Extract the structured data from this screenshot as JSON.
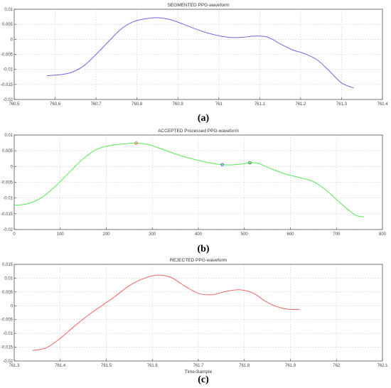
{
  "chart_data": [
    {
      "type": "line",
      "title": "SEGMENTED PPG-waveform",
      "panel_label": "(a)",
      "xlabel": "",
      "ylabel": "",
      "xlim": [
        760.5,
        761.4
      ],
      "ylim": [
        -0.02,
        0.01
      ],
      "xticks": [
        760.5,
        760.6,
        760.7,
        760.8,
        760.9,
        761,
        761.1,
        761.2,
        761.3,
        761.4
      ],
      "yticks": [
        -0.02,
        -0.015,
        -0.01,
        -0.005,
        0,
        0.005,
        0.01
      ],
      "xtick_labels": [
        "760.5",
        "760.6",
        "760.7",
        "760.8",
        "760.9",
        "761",
        "761.1",
        "761.2",
        "761.3",
        "761.4"
      ],
      "ytick_labels": [
        "-0.02",
        "-0.015",
        "-0.01",
        "-0.005",
        "0",
        "0.005",
        "0.01"
      ],
      "grid": true,
      "series": [
        {
          "color": "#6a6ae8",
          "x": [
            760.58,
            760.61,
            760.64,
            760.67,
            760.7,
            760.73,
            760.76,
            760.79,
            760.82,
            760.85,
            760.88,
            760.91,
            760.94,
            760.97,
            761.0,
            761.03,
            761.06,
            761.09,
            761.12,
            761.15,
            761.18,
            761.21,
            761.24,
            761.27,
            761.3,
            761.33
          ],
          "y": [
            -0.0121,
            -0.0118,
            -0.011,
            -0.0088,
            -0.005,
            -0.0008,
            0.0033,
            0.0058,
            0.0068,
            0.0072,
            0.0066,
            0.0052,
            0.0036,
            0.0022,
            0.0012,
            0.0006,
            0.0007,
            0.0011,
            0.0007,
            -0.0015,
            -0.0035,
            -0.0048,
            -0.0068,
            -0.0105,
            -0.0145,
            -0.0162
          ]
        }
      ]
    },
    {
      "type": "line",
      "title": "ACCEPTED Processed PPG-waveform",
      "panel_label": "(b)",
      "xlabel": "",
      "ylabel": "",
      "xlim": [
        0,
        800
      ],
      "ylim": [
        -0.02,
        0.01
      ],
      "xticks": [
        0,
        100,
        200,
        300,
        400,
        500,
        600,
        700,
        800
      ],
      "yticks": [
        -0.02,
        -0.015,
        -0.01,
        -0.005,
        0,
        0.005,
        0.01
      ],
      "xtick_labels": [
        "0",
        "100",
        "200",
        "300",
        "400",
        "500",
        "600",
        "700",
        "800"
      ],
      "ytick_labels": [
        "-0.02",
        "-0.015",
        "-0.01",
        "-0.005",
        "0",
        "0.005",
        "0.01"
      ],
      "grid": true,
      "series": [
        {
          "color": "#55e855",
          "x": [
            0,
            30,
            60,
            90,
            120,
            150,
            180,
            210,
            240,
            265,
            290,
            320,
            350,
            380,
            410,
            440,
            452,
            470,
            495,
            512,
            530,
            560,
            590,
            620,
            650,
            680,
            710,
            740,
            760
          ],
          "y": [
            -0.0123,
            -0.0118,
            -0.0098,
            -0.0062,
            -0.0018,
            0.0025,
            0.0055,
            0.0067,
            0.0072,
            0.0074,
            0.007,
            0.0056,
            0.004,
            0.0027,
            0.0016,
            0.0008,
            0.0006,
            0.0005,
            0.0008,
            0.0012,
            0.001,
            -0.0008,
            -0.0024,
            -0.0035,
            -0.0048,
            -0.0078,
            -0.0118,
            -0.0153,
            -0.016
          ]
        }
      ],
      "markers": [
        {
          "x": 265,
          "y": 0.0074,
          "color": "#e06020"
        },
        {
          "x": 452,
          "y": 0.0006,
          "color": "#3060e0"
        },
        {
          "x": 512,
          "y": 0.0012,
          "color": "#208040"
        }
      ]
    },
    {
      "type": "line",
      "title": "REJECTED PPG-waveform",
      "panel_label": "(c)",
      "xlabel": "Time-Sample",
      "ylabel": "",
      "xlim": [
        761.3,
        762.1
      ],
      "ylim": [
        -0.02,
        0.015
      ],
      "xticks": [
        761.3,
        761.4,
        761.5,
        761.6,
        761.7,
        761.8,
        761.9,
        762,
        762.1
      ],
      "yticks": [
        -0.02,
        -0.015,
        -0.01,
        -0.005,
        0,
        0.005,
        0.01,
        0.015
      ],
      "xtick_labels": [
        "761.3",
        "761.4",
        "761.5",
        "761.6",
        "761.7",
        "761.8",
        "761.9",
        "762",
        "762.1"
      ],
      "ytick_labels": [
        "-0.02",
        "-0.015",
        "-0.01",
        "-0.005",
        "0",
        "0.005",
        "0.01",
        "0.015"
      ],
      "grid": true,
      "series": [
        {
          "color": "#ee6464",
          "x": [
            761.34,
            761.37,
            761.4,
            761.43,
            761.46,
            761.49,
            761.52,
            761.55,
            761.58,
            761.61,
            761.64,
            761.67,
            761.7,
            761.73,
            761.76,
            761.79,
            761.82,
            761.85,
            761.88,
            761.9,
            761.92
          ],
          "y": [
            -0.0162,
            -0.0152,
            -0.0118,
            -0.0075,
            -0.0035,
            0.0,
            0.0035,
            0.0073,
            0.0098,
            0.0111,
            0.0103,
            0.0072,
            0.0045,
            0.004,
            0.0052,
            0.0058,
            0.0045,
            0.0012,
            -0.0008,
            -0.0013,
            -0.0013
          ]
        }
      ]
    }
  ]
}
